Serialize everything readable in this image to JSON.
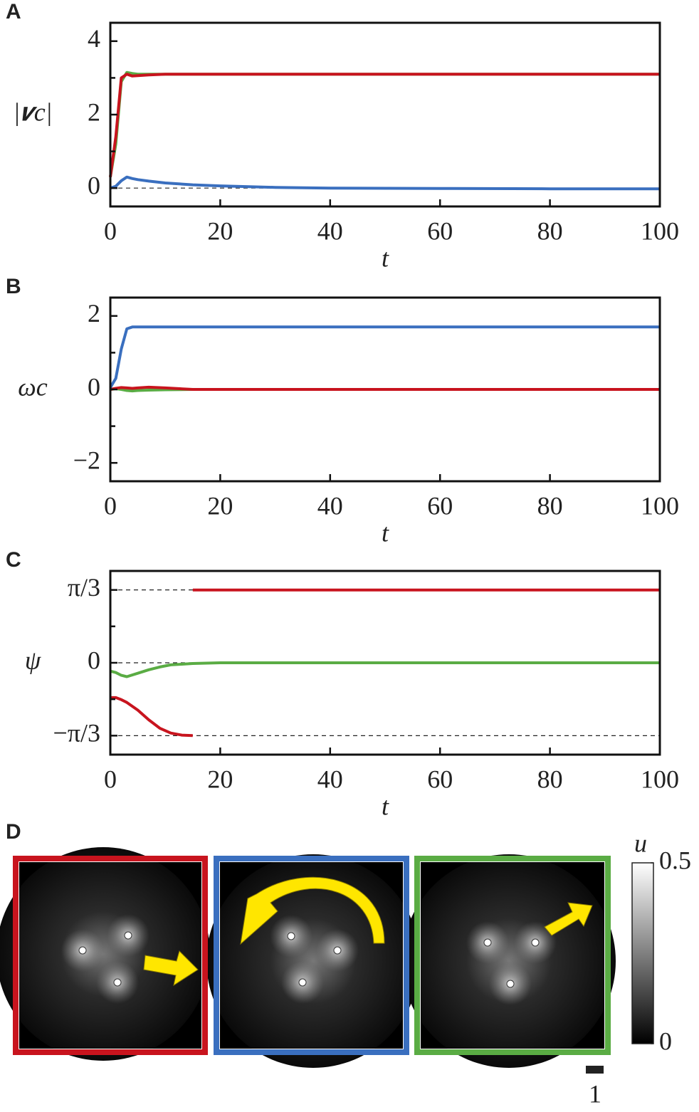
{
  "chart_data": [
    {
      "type": "line",
      "panel": "A",
      "ylabel": "|𝒗c|",
      "xlabel": "t",
      "xlim": [
        0,
        100
      ],
      "xticks": [
        0,
        20,
        40,
        60,
        80,
        100
      ],
      "ylim": [
        -0.5,
        4.5
      ],
      "yticks": [
        0,
        2,
        4
      ],
      "yminorticks": [
        1,
        3
      ],
      "hlines": [
        0
      ],
      "x": [
        0,
        1,
        2,
        3,
        4,
        5,
        7,
        10,
        15,
        20,
        30,
        40,
        60,
        80,
        100
      ],
      "series": [
        {
          "color": "#3a6fbf",
          "values": [
            0,
            0.05,
            0.2,
            0.3,
            0.26,
            0.23,
            0.19,
            0.14,
            0.09,
            0.06,
            0.02,
            0,
            -0.01,
            -0.02,
            -0.02
          ]
        },
        {
          "color": "#5aac44",
          "values": [
            0.3,
            1.2,
            2.9,
            3.15,
            3.12,
            3.1,
            3.1,
            3.1,
            3.1,
            3.1,
            3.1,
            3.1,
            3.1,
            3.1,
            3.1
          ]
        },
        {
          "color": "#c8141e",
          "values": [
            0.3,
            1.4,
            3.0,
            3.1,
            3.05,
            3.06,
            3.08,
            3.1,
            3.1,
            3.1,
            3.1,
            3.1,
            3.1,
            3.1,
            3.1
          ]
        }
      ]
    },
    {
      "type": "line",
      "panel": "B",
      "ylabel": "ωc",
      "xlabel": "t",
      "xlim": [
        0,
        100
      ],
      "xticks": [
        0,
        20,
        40,
        60,
        80,
        100
      ],
      "ylim": [
        -2.5,
        2.5
      ],
      "yticks": [
        {
          "value": -2,
          "label": "−2"
        },
        0,
        2
      ],
      "yminorticks": [
        -1,
        1
      ],
      "hlines": [],
      "x": [
        0,
        1,
        2,
        3,
        4,
        5,
        7,
        10,
        15,
        20,
        40,
        60,
        80,
        100
      ],
      "series": [
        {
          "color": "#5aac44",
          "values": [
            0,
            0.02,
            0,
            -0.03,
            -0.04,
            -0.03,
            -0.02,
            -0.01,
            0,
            0,
            0,
            0,
            0,
            0
          ]
        },
        {
          "color": "#c8141e",
          "values": [
            0,
            0.03,
            0.05,
            0.04,
            0.03,
            0.04,
            0.06,
            0.04,
            0,
            0,
            0,
            0,
            0,
            0
          ]
        },
        {
          "color": "#3a6fbf",
          "values": [
            0.05,
            0.3,
            1.1,
            1.65,
            1.7,
            1.7,
            1.7,
            1.7,
            1.7,
            1.7,
            1.7,
            1.7,
            1.7,
            1.7
          ]
        }
      ]
    },
    {
      "type": "line",
      "panel": "C",
      "ylabel": "ψ",
      "xlabel": "t",
      "xlim": [
        0,
        100
      ],
      "xticks": [
        0,
        20,
        40,
        60,
        80,
        100
      ],
      "ylim": [
        -1.32,
        1.32
      ],
      "yticks": [
        {
          "value": -1.0472,
          "label": "−π/3"
        },
        0,
        {
          "value": 1.0472,
          "label": "π/3"
        }
      ],
      "yminorticks": [
        -0.5236,
        0.5236
      ],
      "hlines": [
        -1.0472,
        0,
        1.0472
      ],
      "x": [
        0,
        1,
        2,
        3,
        5,
        7,
        9,
        11,
        13,
        15,
        20,
        40,
        60,
        80,
        100
      ],
      "series": [
        {
          "color": "#5aac44",
          "values": [
            -0.12,
            -0.14,
            -0.18,
            -0.2,
            -0.15,
            -0.1,
            -0.06,
            -0.03,
            -0.02,
            -0.01,
            0,
            0,
            0,
            0,
            0
          ]
        },
        {
          "color": "#c8141e",
          "values": [
            -0.5,
            -0.5,
            -0.53,
            -0.57,
            -0.68,
            -0.82,
            -0.94,
            -1.01,
            -1.04,
            -1.047,
            null,
            null,
            null,
            null,
            null
          ]
        },
        {
          "color": "#c8141e",
          "values": [
            null,
            null,
            null,
            null,
            null,
            null,
            null,
            null,
            null,
            1.0472,
            1.0472,
            1.0472,
            1.0472,
            1.0472,
            1.0472
          ]
        }
      ]
    }
  ],
  "panel_d": {
    "panel": "D",
    "frame_colors": [
      "#c8141e",
      "#3a6fbf",
      "#5aac44"
    ],
    "colorbar": {
      "title": "u",
      "lim": [
        0,
        0.5
      ],
      "ticks": [
        0,
        0.5
      ]
    },
    "scalebar": 1
  }
}
